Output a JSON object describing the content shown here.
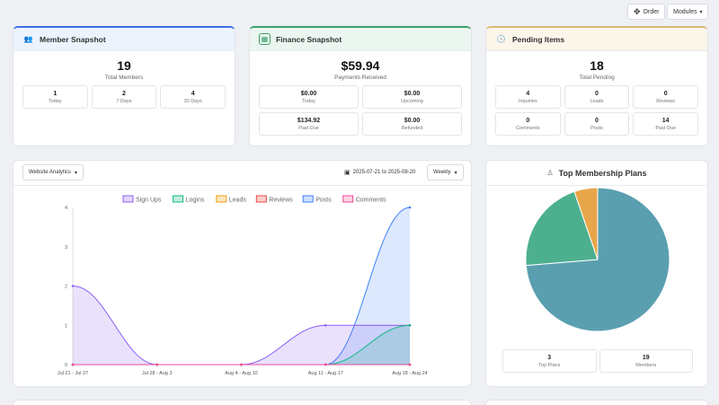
{
  "toolbar": {
    "order_label": "Order",
    "modules_label": "Modules"
  },
  "member": {
    "title": "Member Snapshot",
    "total": "19",
    "total_label": "Total Members",
    "stats": [
      {
        "value": "1",
        "label": "Today"
      },
      {
        "value": "2",
        "label": "7 Days"
      },
      {
        "value": "4",
        "label": "30 Days"
      }
    ]
  },
  "finance": {
    "title": "Finance Snapshot",
    "total": "$59.94",
    "total_label": "Payments Received",
    "stats": [
      {
        "value": "$0.00",
        "label": "Today"
      },
      {
        "value": "$0.00",
        "label": "Upcoming"
      },
      {
        "value": "$134.92",
        "label": "Past Due"
      },
      {
        "value": "$0.00",
        "label": "Refunded"
      }
    ]
  },
  "pending": {
    "title": "Pending Items",
    "total": "18",
    "total_label": "Total Pending",
    "stats": [
      {
        "value": "4",
        "label": "Inquiries"
      },
      {
        "value": "0",
        "label": "Leads"
      },
      {
        "value": "0",
        "label": "Reviews"
      },
      {
        "value": "0",
        "label": "Comments"
      },
      {
        "value": "0",
        "label": "Posts"
      },
      {
        "value": "14",
        "label": "Past Due"
      }
    ]
  },
  "analytics": {
    "dropdown": "Website Analytics",
    "date_range": "2025-07-21 to 2025-08-20",
    "interval": "Weekly"
  },
  "plans": {
    "title": "Top Membership Plans",
    "stats": [
      {
        "value": "3",
        "label": "Top Plans"
      },
      {
        "value": "19",
        "label": "Members"
      }
    ]
  },
  "chart_data": [
    {
      "type": "area",
      "categories": [
        "Jul 21 - Jul 27",
        "Jul 28 - Aug 3",
        "Aug 4 - Aug 10",
        "Aug 11 - Aug 17",
        "Aug 18 - Aug 24"
      ],
      "y_ticks": [
        "0",
        "1",
        "2",
        "3",
        "4"
      ],
      "ylim": [
        0,
        4
      ],
      "legend_position": "top",
      "series": [
        {
          "name": "Sign Ups",
          "color": "#8b5cf6",
          "values": [
            2,
            0,
            0,
            1,
            1
          ]
        },
        {
          "name": "Logins",
          "color": "#10b981",
          "values": [
            0,
            0,
            0,
            0,
            1
          ]
        },
        {
          "name": "Leads",
          "color": "#f59e0b",
          "values": [
            0,
            0,
            0,
            0,
            0
          ]
        },
        {
          "name": "Reviews",
          "color": "#ef4444",
          "values": [
            0,
            0,
            0,
            0,
            0
          ]
        },
        {
          "name": "Posts",
          "color": "#3b82f6",
          "values": [
            0,
            0,
            0,
            0,
            4
          ]
        },
        {
          "name": "Comments",
          "color": "#ec4899",
          "values": [
            0,
            0,
            0,
            0,
            0
          ]
        }
      ]
    },
    {
      "type": "pie",
      "values": [
        14,
        4,
        1
      ],
      "colors": [
        "#5a9fb0",
        "#4cb08f",
        "#e8a64a"
      ]
    }
  ]
}
